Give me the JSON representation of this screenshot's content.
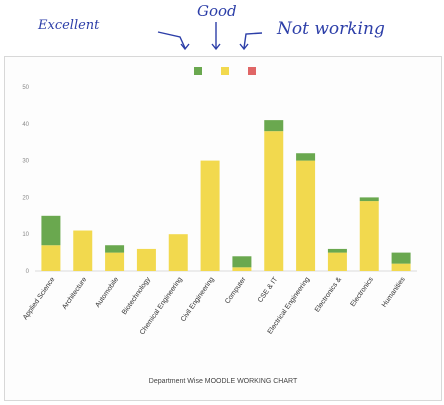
{
  "annotations": {
    "excellent": "Excellent",
    "good": "Good",
    "not_working": "Not working"
  },
  "colors": {
    "excellent": "#6aa84f",
    "good": "#f2d94e",
    "not_working": "#e06666",
    "ink": "#2c3ea8"
  },
  "chart_data": {
    "type": "bar",
    "stacked": true,
    "title": "Department Wise MOODLE WORKING CHART",
    "xlabel": "",
    "ylabel": "",
    "ylim": [
      0,
      50
    ],
    "yticks": [
      0,
      10,
      20,
      30,
      40,
      50
    ],
    "grid": false,
    "legend": "top-center",
    "categories": [
      "Applied Science",
      "Architecture",
      "Automobile",
      "Biotechnology",
      "Chemical Engineering",
      "Civil Engineering",
      "Computer",
      "CSE & IT",
      "Electrical Engineering",
      "Electronics &",
      "Electronics",
      "Humanities"
    ],
    "series": [
      {
        "key": "good",
        "color": "#f2d94e",
        "values": [
          7,
          11,
          5,
          6,
          10,
          30,
          1,
          38,
          30,
          5,
          19,
          2
        ]
      },
      {
        "key": "excellent",
        "color": "#6aa84f",
        "values": [
          8,
          0,
          2,
          0,
          0,
          0,
          3,
          3,
          2,
          1,
          1,
          3
        ]
      },
      {
        "key": "not_working",
        "color": "#e06666",
        "values": [
          0,
          0,
          0,
          0,
          0,
          0,
          0,
          0,
          0,
          0,
          0,
          0
        ]
      }
    ]
  }
}
